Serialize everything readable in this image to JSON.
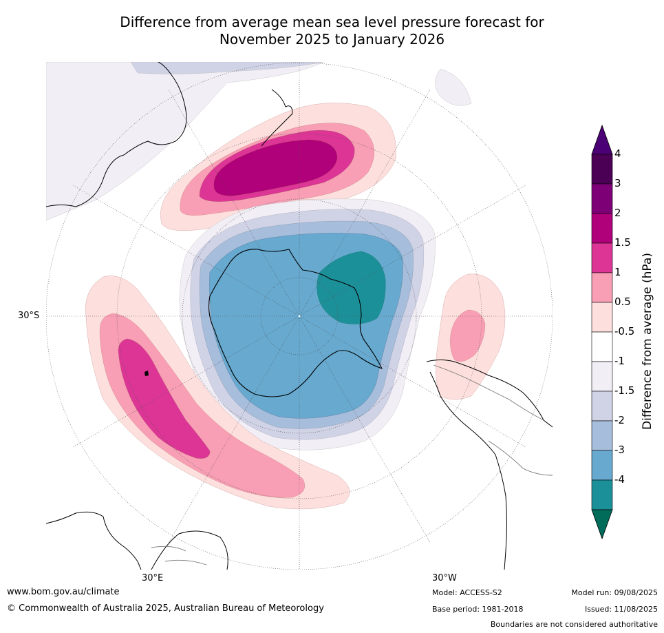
{
  "title_line1": "Difference from average mean sea level pressure forecast for",
  "title_line2": "November 2025 to January 2026",
  "colorbar": {
    "title": "Difference from average (hPa)",
    "levels": [
      {
        "label": "4",
        "color": "#4b0055"
      },
      {
        "label": "3",
        "color": "#7d0077"
      },
      {
        "label": "2",
        "color": "#b0007a"
      },
      {
        "label": "1.5",
        "color": "#dc3595"
      },
      {
        "label": "1",
        "color": "#f89eb5"
      },
      {
        "label": "0.5",
        "color": "#fde0dd"
      },
      {
        "label": "-0.5",
        "color": "#ffffff"
      },
      {
        "label": "-1",
        "color": "#f2eef5"
      },
      {
        "label": "-1.5",
        "color": "#d0d2e6"
      },
      {
        "label": "-2",
        "color": "#a6bddb"
      },
      {
        "label": "-3",
        "color": "#67a9cf"
      },
      {
        "label": "-4",
        "color": "#1c9099"
      }
    ],
    "below_color": "#016c59",
    "above_color": "#4b0075"
  },
  "axis_labels": {
    "lat": "30°S",
    "lon_east": "30°E",
    "lon_west": "30°W"
  },
  "footer": {
    "website": "www.bom.gov.au/climate",
    "copyright": "© Commonwealth of Australia 2025, Australian Bureau of Meteorology",
    "model": "Model: ACCESS-S2",
    "base_period": "Base period: 1981-2018",
    "model_run": "Model run: 09/08/2025",
    "issued": "Issued: 11/08/2025",
    "disclaimer": "Boundaries are not considered authoritative"
  }
}
